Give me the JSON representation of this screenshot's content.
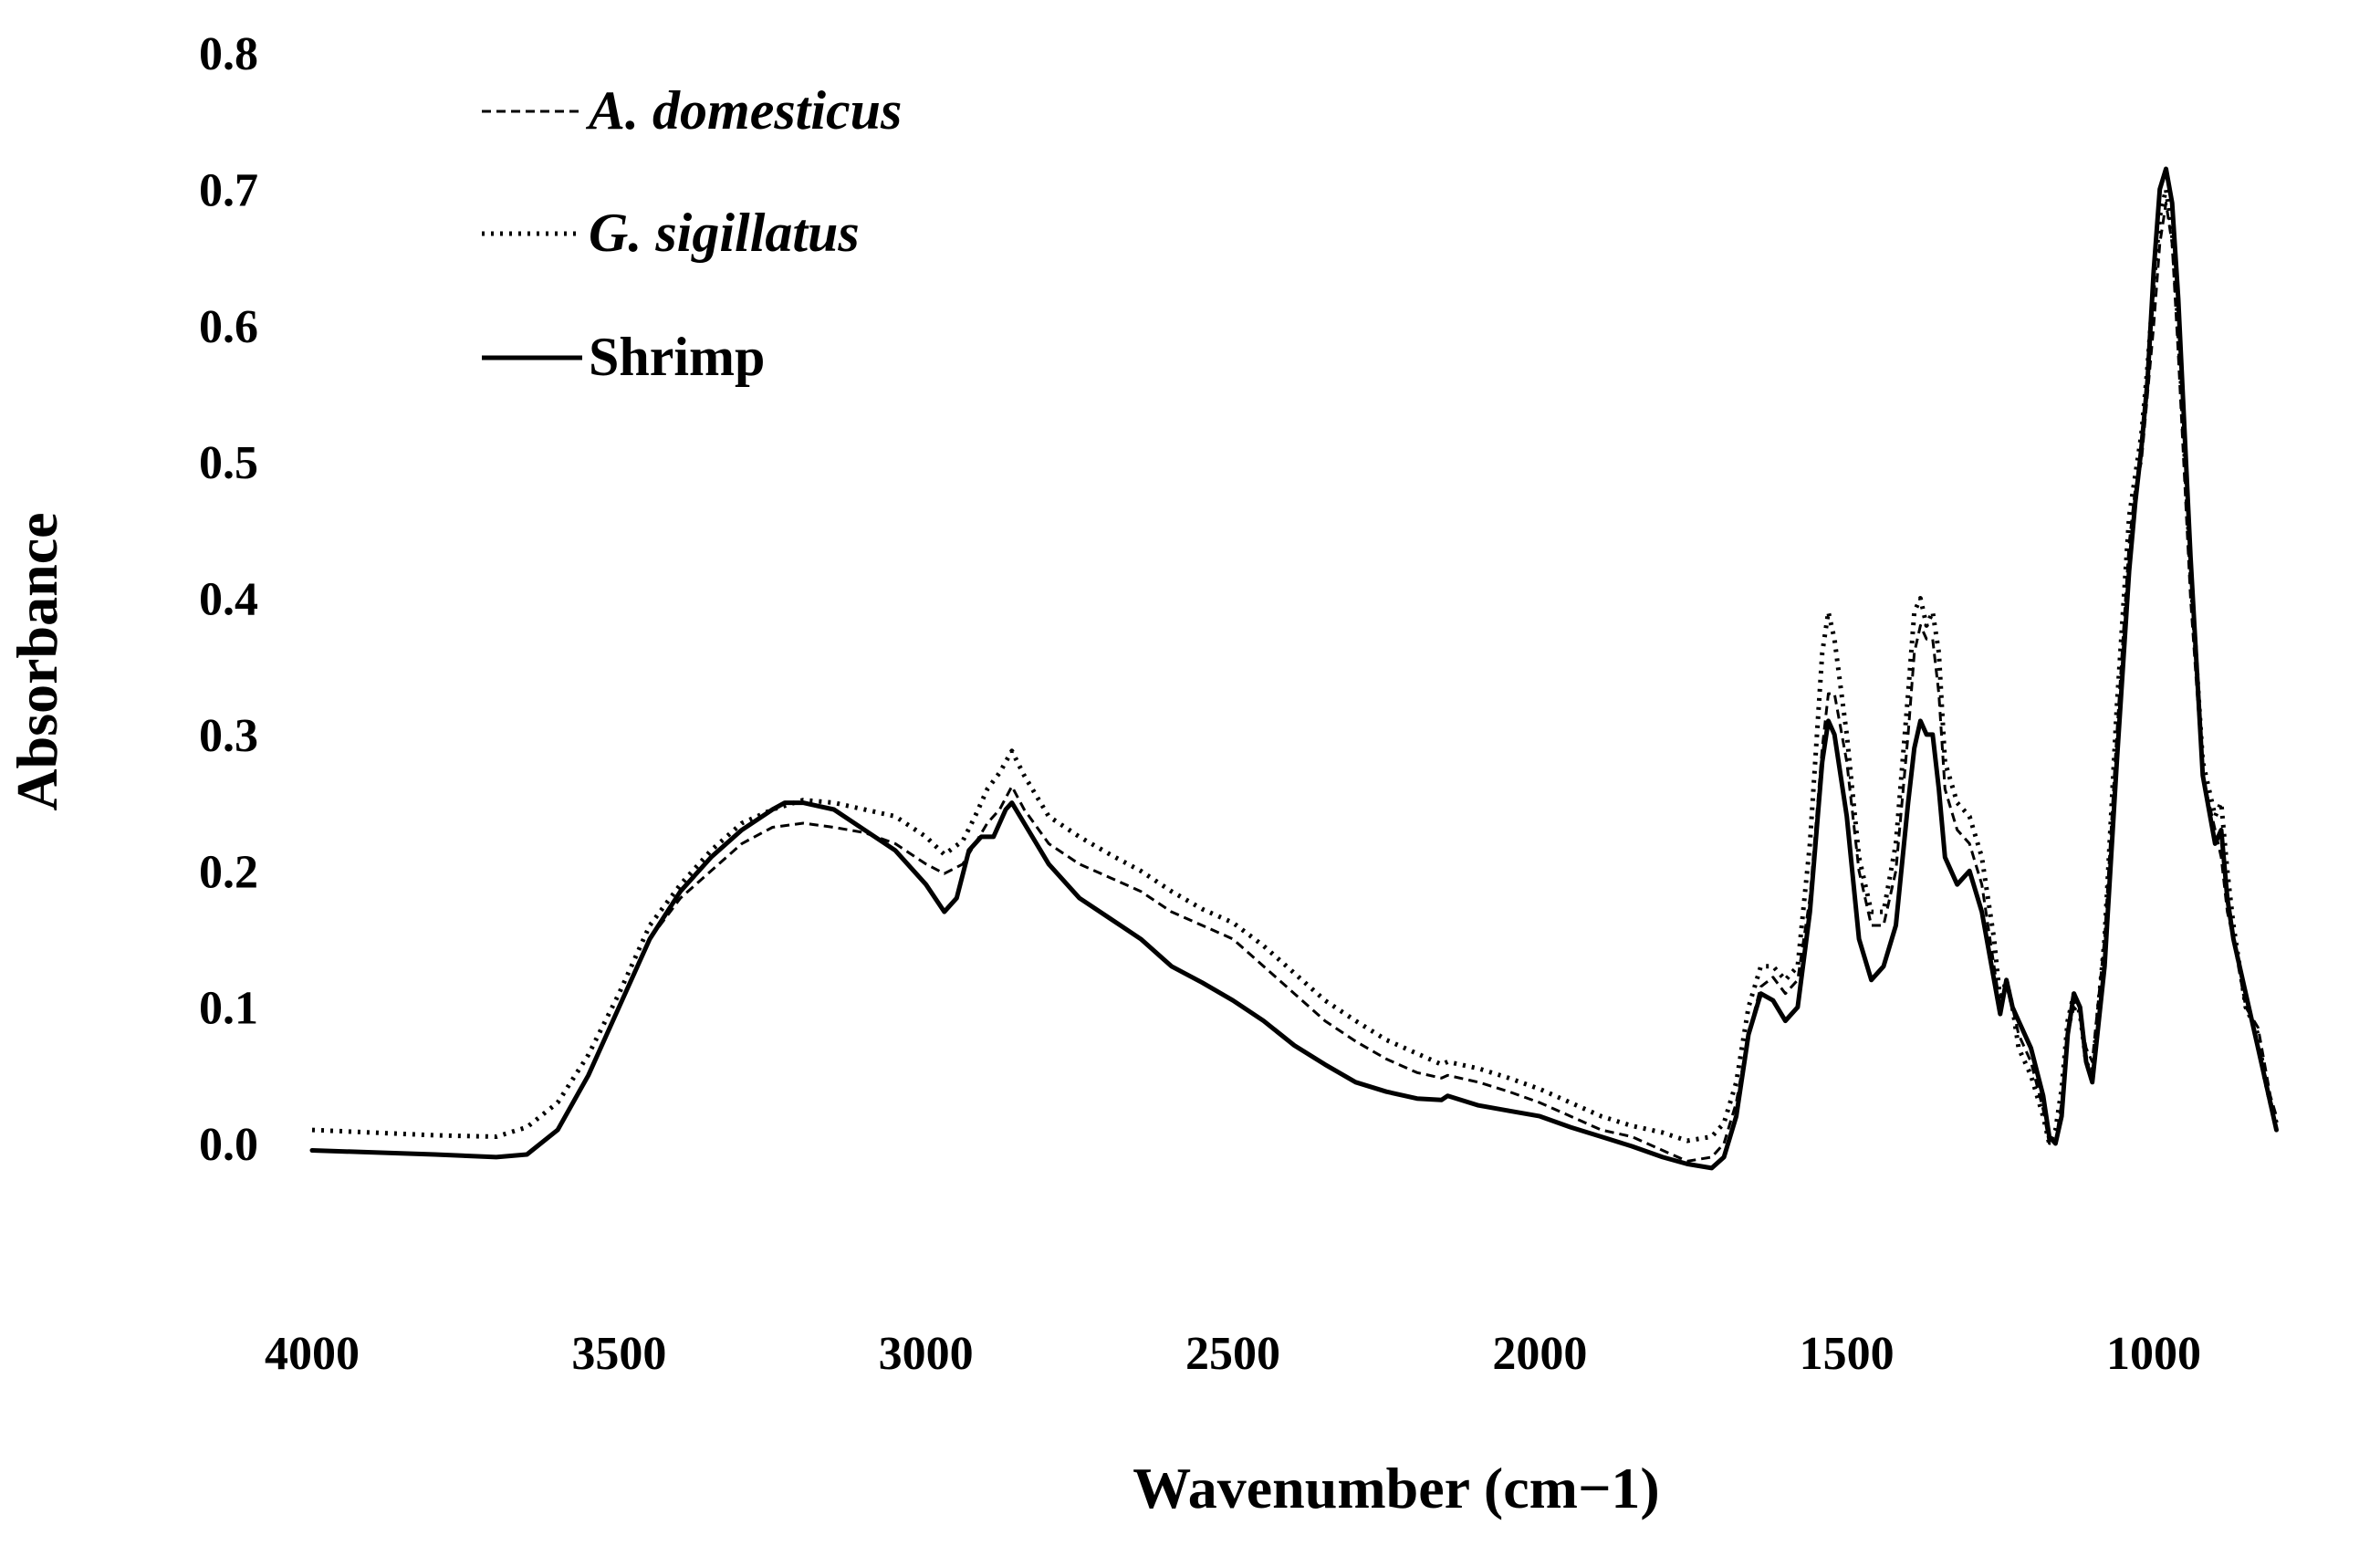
{
  "chart_data": {
    "type": "line",
    "title": "",
    "xlabel": "Wavenumber (cm−1)",
    "ylabel": "Absorbance",
    "xlim": [
      4000,
      800
    ],
    "ylim": [
      0.0,
      0.8
    ],
    "x_reversed": true,
    "grid": false,
    "legend_position": "top-left",
    "x_ticks": [
      4000,
      3500,
      3000,
      2500,
      2000,
      1500,
      1000
    ],
    "x_tick_labels": [
      "4000",
      "3500",
      "3000",
      "2500",
      "2000",
      "1500",
      "1000"
    ],
    "y_ticks": [
      0.0,
      0.1,
      0.2,
      0.3,
      0.4,
      0.5,
      0.6,
      0.7,
      0.8
    ],
    "y_tick_labels": [
      "0.0",
      "0.1",
      "0.2",
      "0.3",
      "0.4",
      "0.5",
      "0.6",
      "0.7",
      "0.8"
    ],
    "series": [
      {
        "name": "A. domesticus",
        "style": "dashed",
        "x": [
          4000,
          3800,
          3700,
          3650,
          3600,
          3550,
          3500,
          3450,
          3400,
          3350,
          3300,
          3250,
          3200,
          3150,
          3100,
          3050,
          3000,
          2970,
          2940,
          2920,
          2900,
          2880,
          2860,
          2840,
          2800,
          2750,
          2700,
          2650,
          2600,
          2550,
          2500,
          2450,
          2400,
          2350,
          2300,
          2250,
          2200,
          2160,
          2150,
          2100,
          2050,
          2000,
          1950,
          1900,
          1850,
          1800,
          1760,
          1720,
          1700,
          1680,
          1660,
          1640,
          1620,
          1600,
          1580,
          1560,
          1540,
          1530,
          1520,
          1500,
          1480,
          1460,
          1440,
          1420,
          1400,
          1390,
          1380,
          1370,
          1360,
          1350,
          1340,
          1320,
          1300,
          1280,
          1260,
          1250,
          1240,
          1230,
          1220,
          1200,
          1180,
          1170,
          1160,
          1150,
          1140,
          1130,
          1120,
          1110,
          1100,
          1080,
          1060,
          1040,
          1030,
          1020,
          1010,
          1000,
          990,
          980,
          970,
          960,
          940,
          920,
          900,
          890,
          880,
          870,
          850,
          830,
          820,
          810,
          800
        ],
        "values": [
          -0.005,
          -0.008,
          -0.01,
          -0.008,
          0.01,
          0.05,
          0.1,
          0.15,
          0.18,
          0.2,
          0.22,
          0.232,
          0.235,
          0.232,
          0.228,
          0.22,
          0.205,
          0.198,
          0.205,
          0.22,
          0.235,
          0.245,
          0.262,
          0.245,
          0.22,
          0.205,
          0.195,
          0.185,
          0.17,
          0.16,
          0.15,
          0.13,
          0.11,
          0.09,
          0.075,
          0.062,
          0.052,
          0.048,
          0.05,
          0.045,
          0.038,
          0.03,
          0.02,
          0.01,
          0.005,
          -0.005,
          -0.013,
          -0.01,
          0.0,
          0.03,
          0.08,
          0.115,
          0.122,
          0.11,
          0.12,
          0.18,
          0.29,
          0.33,
          0.33,
          0.28,
          0.2,
          0.16,
          0.16,
          0.2,
          0.3,
          0.36,
          0.38,
          0.37,
          0.37,
          0.33,
          0.26,
          0.23,
          0.22,
          0.19,
          0.13,
          0.1,
          0.115,
          0.1,
          0.08,
          0.06,
          0.025,
          0.0,
          0.0,
          0.03,
          0.08,
          0.1,
          0.095,
          0.07,
          0.06,
          0.15,
          0.3,
          0.44,
          0.48,
          0.5,
          0.55,
          0.6,
          0.66,
          0.69,
          0.66,
          0.58,
          0.4,
          0.27,
          0.23,
          0.21,
          0.17,
          0.15,
          0.1,
          0.085,
          0.06,
          0.035,
          0.02
        ]
      },
      {
        "name": "G. sigillatus",
        "style": "dotted",
        "x": [
          4000,
          3800,
          3700,
          3650,
          3600,
          3550,
          3500,
          3450,
          3400,
          3350,
          3300,
          3250,
          3200,
          3150,
          3100,
          3050,
          3000,
          2970,
          2940,
          2920,
          2900,
          2880,
          2860,
          2840,
          2800,
          2750,
          2700,
          2650,
          2600,
          2550,
          2500,
          2450,
          2400,
          2350,
          2300,
          2250,
          2200,
          2160,
          2150,
          2100,
          2050,
          2000,
          1950,
          1900,
          1850,
          1800,
          1760,
          1720,
          1700,
          1680,
          1660,
          1640,
          1620,
          1600,
          1580,
          1560,
          1540,
          1530,
          1520,
          1500,
          1480,
          1460,
          1440,
          1420,
          1400,
          1390,
          1380,
          1370,
          1360,
          1350,
          1340,
          1320,
          1300,
          1280,
          1260,
          1250,
          1240,
          1230,
          1220,
          1200,
          1180,
          1170,
          1160,
          1150,
          1140,
          1130,
          1120,
          1110,
          1100,
          1080,
          1060,
          1040,
          1030,
          1020,
          1010,
          1000,
          990,
          980,
          970,
          960,
          940,
          920,
          900,
          890,
          880,
          870,
          850,
          830,
          820,
          810,
          800
        ],
        "values": [
          0.01,
          0.006,
          0.005,
          0.012,
          0.03,
          0.065,
          0.11,
          0.16,
          0.19,
          0.215,
          0.235,
          0.245,
          0.252,
          0.25,
          0.245,
          0.24,
          0.225,
          0.212,
          0.222,
          0.24,
          0.26,
          0.272,
          0.288,
          0.27,
          0.24,
          0.225,
          0.212,
          0.2,
          0.185,
          0.172,
          0.162,
          0.145,
          0.125,
          0.105,
          0.09,
          0.076,
          0.066,
          0.058,
          0.06,
          0.055,
          0.048,
          0.04,
          0.03,
          0.02,
          0.013,
          0.008,
          0.002,
          0.005,
          0.015,
          0.045,
          0.1,
          0.13,
          0.13,
          0.12,
          0.13,
          0.22,
          0.36,
          0.39,
          0.37,
          0.3,
          0.21,
          0.17,
          0.17,
          0.22,
          0.33,
          0.39,
          0.4,
          0.38,
          0.39,
          0.36,
          0.28,
          0.25,
          0.24,
          0.21,
          0.15,
          0.105,
          0.12,
          0.1,
          0.07,
          0.05,
          0.02,
          0.0,
          0.01,
          0.04,
          0.09,
          0.11,
          0.095,
          0.06,
          0.05,
          0.15,
          0.32,
          0.46,
          0.49,
          0.52,
          0.57,
          0.63,
          0.68,
          0.7,
          0.67,
          0.6,
          0.42,
          0.28,
          0.24,
          0.25,
          0.2,
          0.16,
          0.1,
          0.08,
          0.05,
          0.03,
          0.015
        ]
      },
      {
        "name": "Shrimp",
        "style": "solid",
        "x": [
          4000,
          3800,
          3700,
          3650,
          3600,
          3550,
          3500,
          3450,
          3400,
          3350,
          3300,
          3250,
          3230,
          3200,
          3150,
          3100,
          3050,
          3000,
          2970,
          2950,
          2930,
          2910,
          2890,
          2870,
          2860,
          2840,
          2800,
          2750,
          2700,
          2650,
          2600,
          2550,
          2500,
          2450,
          2400,
          2350,
          2300,
          2250,
          2200,
          2160,
          2150,
          2100,
          2050,
          2000,
          1950,
          1900,
          1850,
          1800,
          1760,
          1720,
          1700,
          1680,
          1660,
          1640,
          1620,
          1600,
          1580,
          1560,
          1540,
          1530,
          1520,
          1500,
          1480,
          1460,
          1440,
          1420,
          1400,
          1390,
          1380,
          1370,
          1360,
          1350,
          1340,
          1320,
          1300,
          1280,
          1260,
          1250,
          1240,
          1230,
          1220,
          1200,
          1180,
          1170,
          1160,
          1150,
          1140,
          1130,
          1120,
          1110,
          1100,
          1080,
          1060,
          1040,
          1030,
          1020,
          1010,
          1000,
          990,
          980,
          970,
          960,
          940,
          920,
          900,
          890,
          880,
          870,
          850,
          830,
          820,
          810,
          800
        ],
        "values": [
          -0.005,
          -0.008,
          -0.01,
          -0.008,
          0.01,
          0.05,
          0.1,
          0.15,
          0.185,
          0.21,
          0.23,
          0.245,
          0.25,
          0.25,
          0.245,
          0.23,
          0.215,
          0.19,
          0.17,
          0.18,
          0.215,
          0.225,
          0.225,
          0.245,
          0.25,
          0.235,
          0.205,
          0.18,
          0.165,
          0.15,
          0.13,
          0.118,
          0.105,
          0.09,
          0.072,
          0.058,
          0.045,
          0.038,
          0.033,
          0.032,
          0.035,
          0.028,
          0.024,
          0.02,
          0.012,
          0.005,
          -0.002,
          -0.01,
          -0.015,
          -0.018,
          -0.01,
          0.02,
          0.08,
          0.11,
          0.105,
          0.09,
          0.1,
          0.17,
          0.28,
          0.31,
          0.3,
          0.24,
          0.15,
          0.12,
          0.13,
          0.16,
          0.25,
          0.29,
          0.31,
          0.3,
          0.3,
          0.26,
          0.21,
          0.19,
          0.2,
          0.17,
          0.12,
          0.095,
          0.12,
          0.1,
          0.09,
          0.07,
          0.035,
          0.005,
          0.0,
          0.02,
          0.08,
          0.11,
          0.1,
          0.06,
          0.045,
          0.13,
          0.28,
          0.42,
          0.47,
          0.51,
          0.56,
          0.64,
          0.7,
          0.715,
          0.69,
          0.62,
          0.43,
          0.27,
          0.22,
          0.23,
          0.18,
          0.15,
          0.11,
          0.07,
          0.05,
          0.03,
          0.01
        ]
      }
    ]
  }
}
